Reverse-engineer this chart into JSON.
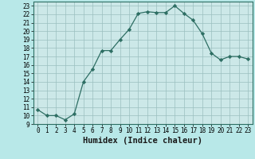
{
  "x": [
    0,
    1,
    2,
    3,
    4,
    5,
    6,
    7,
    8,
    9,
    10,
    11,
    12,
    13,
    14,
    15,
    16,
    17,
    18,
    19,
    20,
    21,
    22,
    23
  ],
  "y": [
    10.7,
    10.0,
    10.0,
    9.5,
    10.2,
    14.0,
    15.5,
    17.7,
    17.7,
    19.0,
    20.2,
    22.1,
    22.3,
    22.2,
    22.2,
    23.0,
    22.1,
    21.3,
    19.7,
    17.4,
    16.6,
    17.0,
    17.0,
    16.7
  ],
  "xlabel": "Humidex (Indice chaleur)",
  "xlim": [
    -0.5,
    23.5
  ],
  "ylim": [
    9,
    23.5
  ],
  "yticks": [
    9,
    10,
    11,
    12,
    13,
    14,
    15,
    16,
    17,
    18,
    19,
    20,
    21,
    22,
    23
  ],
  "xticks": [
    0,
    1,
    2,
    3,
    4,
    5,
    6,
    7,
    8,
    9,
    10,
    11,
    12,
    13,
    14,
    15,
    16,
    17,
    18,
    19,
    20,
    21,
    22,
    23
  ],
  "line_color": "#2d6e63",
  "marker_color": "#2d6e63",
  "bg_color": "#b8e8e8",
  "plot_bg_color": "#cce8e8",
  "grid_color": "#9bbfbf",
  "xlabel_fontsize": 7.5,
  "tick_fontsize": 5.5,
  "marker_size": 2.2,
  "line_width": 0.9
}
